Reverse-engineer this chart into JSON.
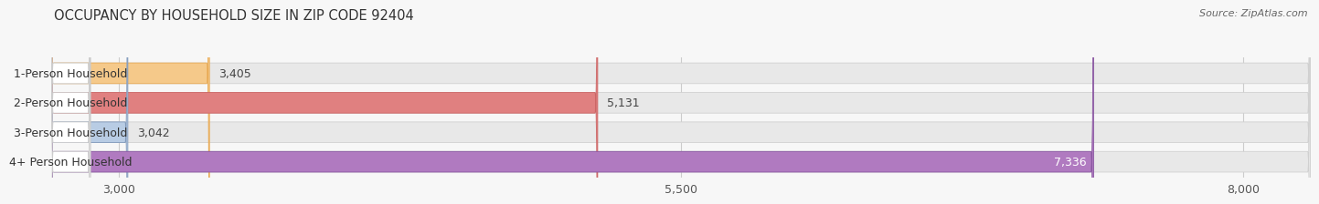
{
  "title": "OCCUPANCY BY HOUSEHOLD SIZE IN ZIP CODE 92404",
  "source": "Source: ZipAtlas.com",
  "categories": [
    "1-Person Household",
    "2-Person Household",
    "3-Person Household",
    "4+ Person Household"
  ],
  "values": [
    3405,
    5131,
    3042,
    7336
  ],
  "bar_colors": [
    "#f5c98a",
    "#e08080",
    "#b8cce4",
    "#b07ac0"
  ],
  "bar_border_colors": [
    "#e8a850",
    "#cc6666",
    "#8099bb",
    "#8855a0"
  ],
  "label_colors": [
    "#333333",
    "#333333",
    "#333333",
    "#333333"
  ],
  "value_colors": [
    "#333333",
    "#333333",
    "#333333",
    "#ffffff"
  ],
  "xmin": 2700,
  "xmax": 8300,
  "xticks": [
    3000,
    5500,
    8000
  ],
  "background_color": "#f7f7f7",
  "bar_bg_color": "#e8e8e8",
  "bar_bg_border": "#d0d0d0",
  "title_fontsize": 10.5,
  "source_fontsize": 8,
  "label_fontsize": 9,
  "value_fontsize": 9,
  "tick_fontsize": 9
}
